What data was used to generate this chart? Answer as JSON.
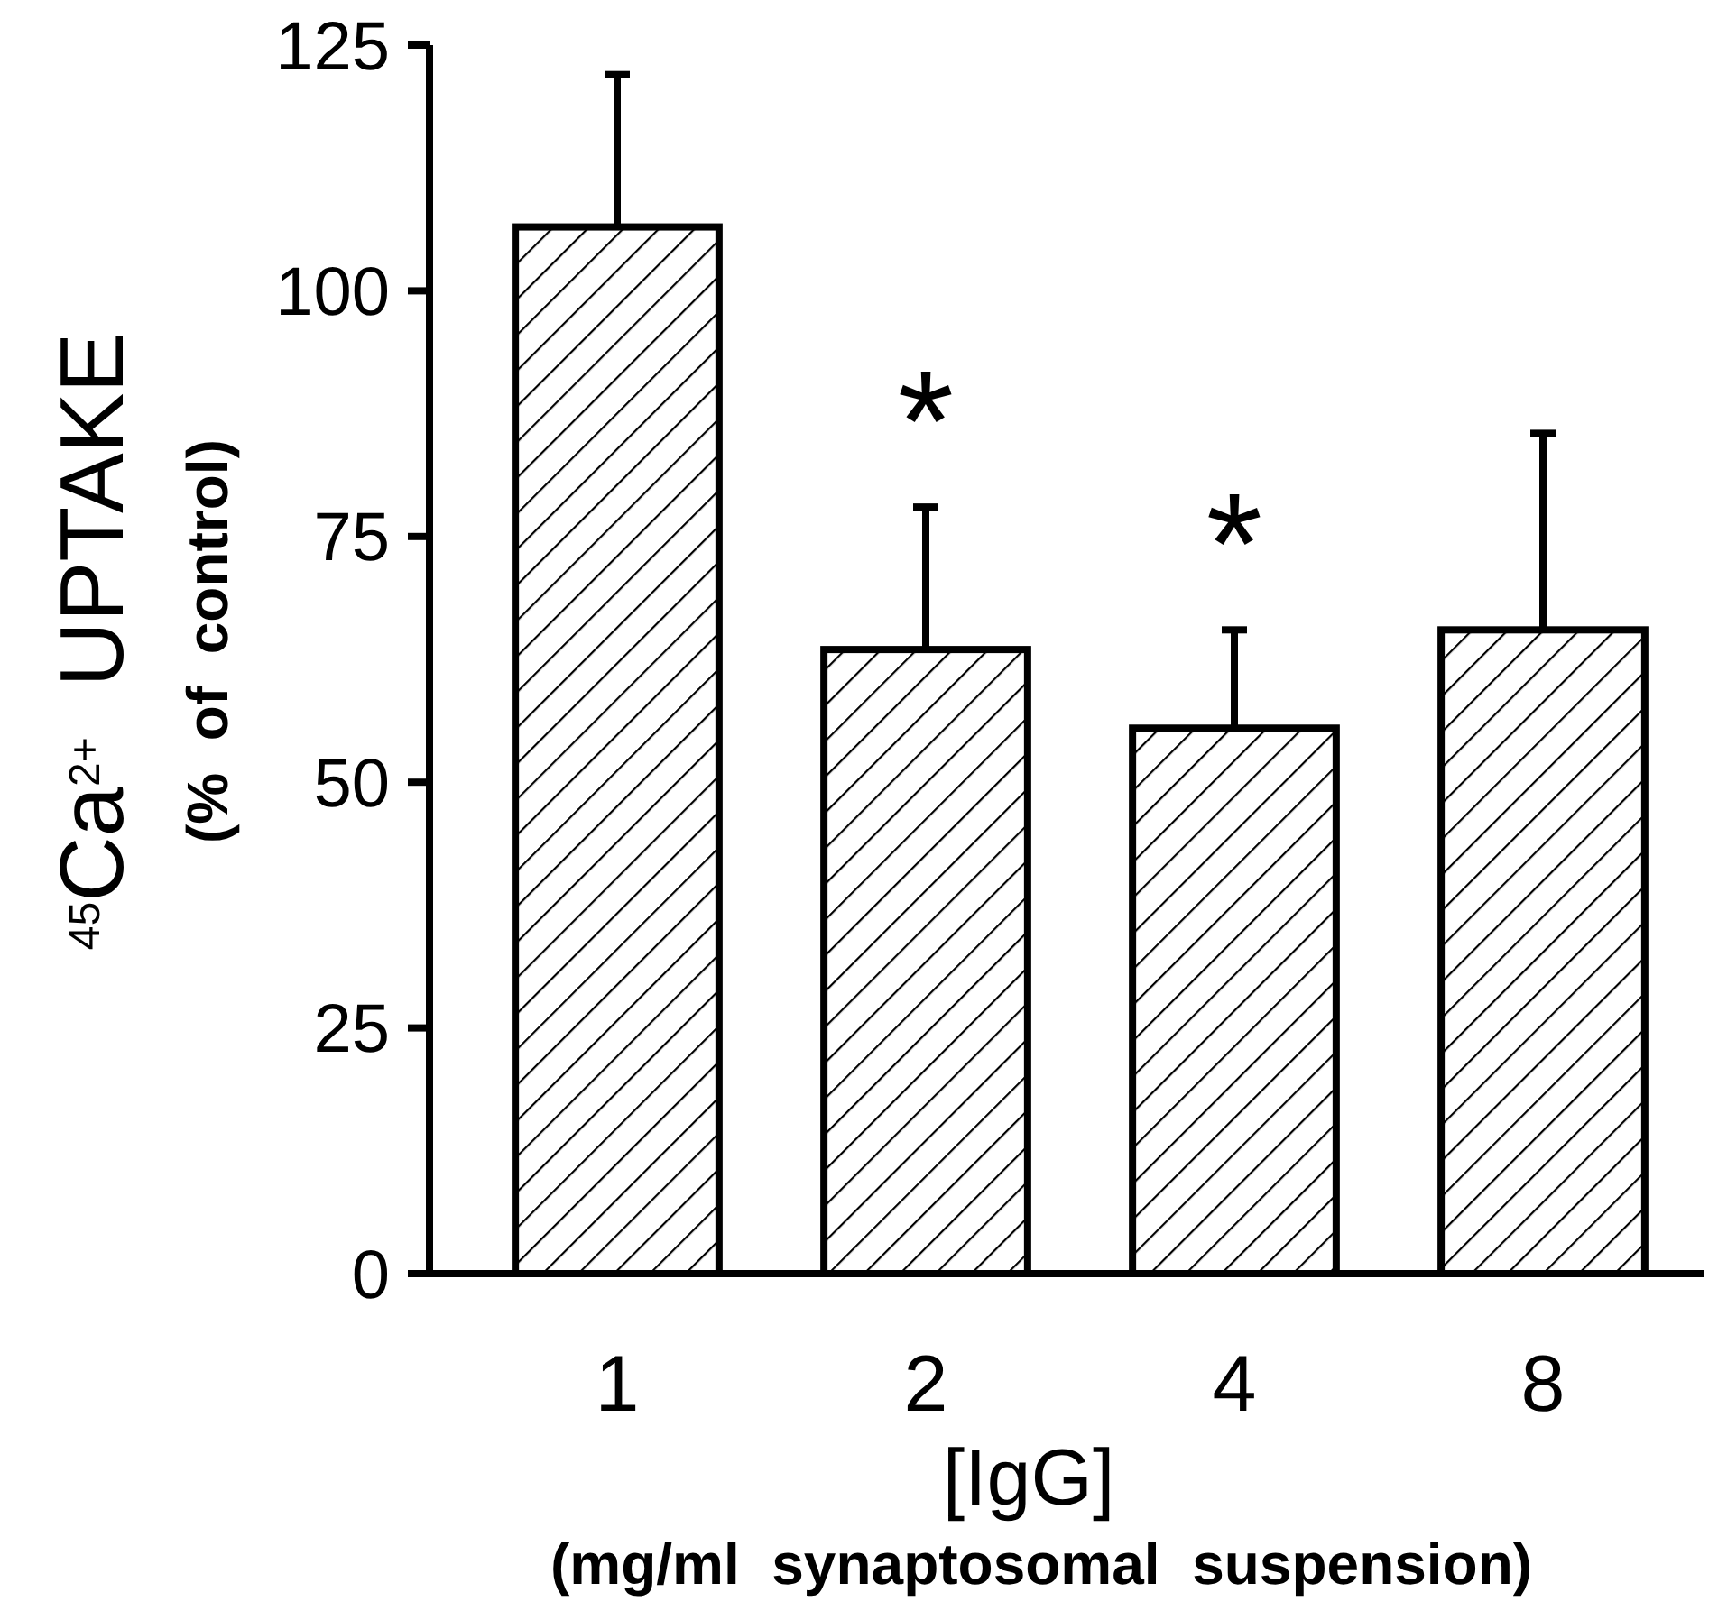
{
  "chart_data": {
    "type": "bar",
    "categories": [
      "1",
      "2",
      "4",
      "8"
    ],
    "values": [
      106.5,
      63.5,
      55.5,
      65.5
    ],
    "errors": [
      [
        106.5,
        122
      ],
      [
        63.5,
        78
      ],
      [
        55.5,
        65.5
      ],
      [
        65.5,
        85.5
      ]
    ],
    "color": "#000000",
    "xlabel": "[IgG]\n(mg/ml  synaptosomal  suspension)",
    "ylabel": "$^{45}$Ca$^{2+}$  UPTAKE\n(%  of  control)",
    "ylim": [
      0,
      125
    ],
    "yticks": [
      0,
      25,
      50,
      75,
      100,
      125
    ],
    "grid": false,
    "annotations": [
      {
        "text": "*",
        "x": "2",
        "y": 63.5
      },
      {
        "text": "*",
        "x": "4",
        "y": 55.5
      }
    ]
  }
}
